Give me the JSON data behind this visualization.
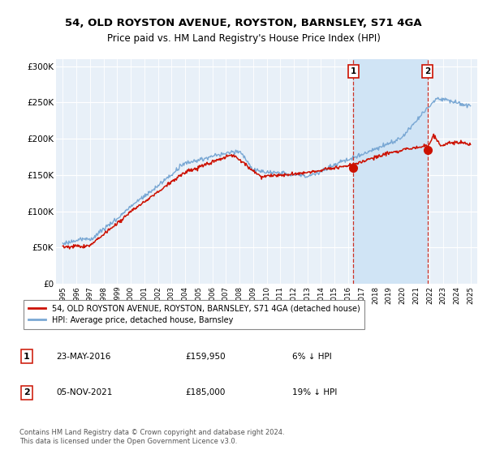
{
  "title": "54, OLD ROYSTON AVENUE, ROYSTON, BARNSLEY, S71 4GA",
  "subtitle": "Price paid vs. HM Land Registry's House Price Index (HPI)",
  "ylabel_ticks": [
    "£0",
    "£50K",
    "£100K",
    "£150K",
    "£200K",
    "£250K",
    "£300K"
  ],
  "ytick_values": [
    0,
    50000,
    100000,
    150000,
    200000,
    250000,
    300000
  ],
  "ylim": [
    0,
    310000
  ],
  "xlim_start": 1994.5,
  "xlim_end": 2025.5,
  "hpi_color": "#7aa8d4",
  "price_color": "#cc1100",
  "bg_color": "#e8f0f8",
  "shade_color": "#d0e4f5",
  "label_border_color": "#cc1100",
  "legend_entry1": "54, OLD ROYSTON AVENUE, ROYSTON, BARNSLEY, S71 4GA (detached house)",
  "legend_entry2": "HPI: Average price, detached house, Barnsley",
  "transaction1_date": 2016.39,
  "transaction1_price": 159950,
  "transaction1_label": "1",
  "transaction2_date": 2021.84,
  "transaction2_price": 185000,
  "transaction2_label": "2",
  "footer": "Contains HM Land Registry data © Crown copyright and database right 2024.\nThis data is licensed under the Open Government Licence v3.0.",
  "table_row1": [
    "1",
    "23-MAY-2016",
    "£159,950",
    "6% ↓ HPI"
  ],
  "table_row2": [
    "2",
    "05-NOV-2021",
    "£185,000",
    "19% ↓ HPI"
  ]
}
